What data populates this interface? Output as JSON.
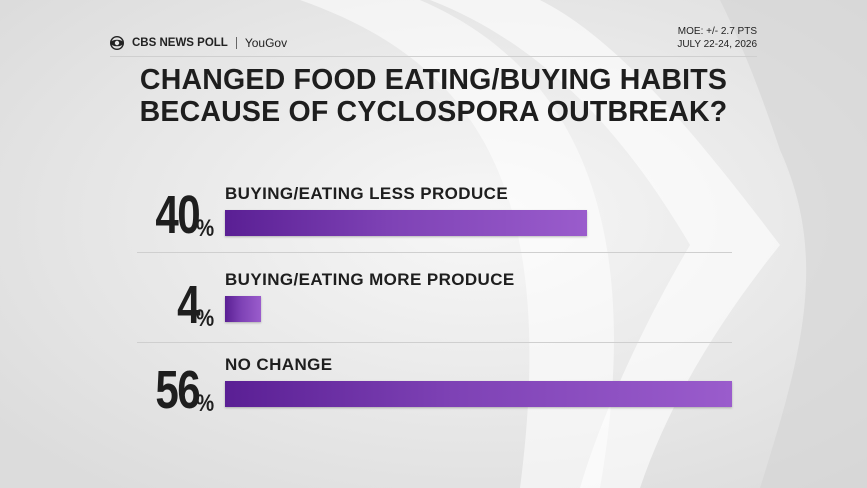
{
  "header": {
    "brand": "CBS NEWS POLL",
    "partner": "YouGov",
    "moe": "MOE: +/- 2.7 PTS",
    "dates": "JULY 22-24, 2026"
  },
  "chart_data": {
    "type": "bar",
    "title_lines": [
      "CHANGED FOOD EATING/BUYING HABITS",
      "BECAUSE OF CYCLOSPORA OUTBREAK?"
    ],
    "categories": [
      "BUYING/EATING LESS PRODUCE",
      "BUYING/EATING MORE PRODUCE",
      "NO CHANGE"
    ],
    "values": [
      40,
      4,
      56
    ],
    "value_labels": [
      "40",
      "4",
      "56"
    ],
    "unit": "%",
    "xlim": [
      0,
      56
    ],
    "grid": false,
    "colors": {
      "bar_start": "#5a1f94",
      "bar_end": "#9a5ccc"
    }
  }
}
